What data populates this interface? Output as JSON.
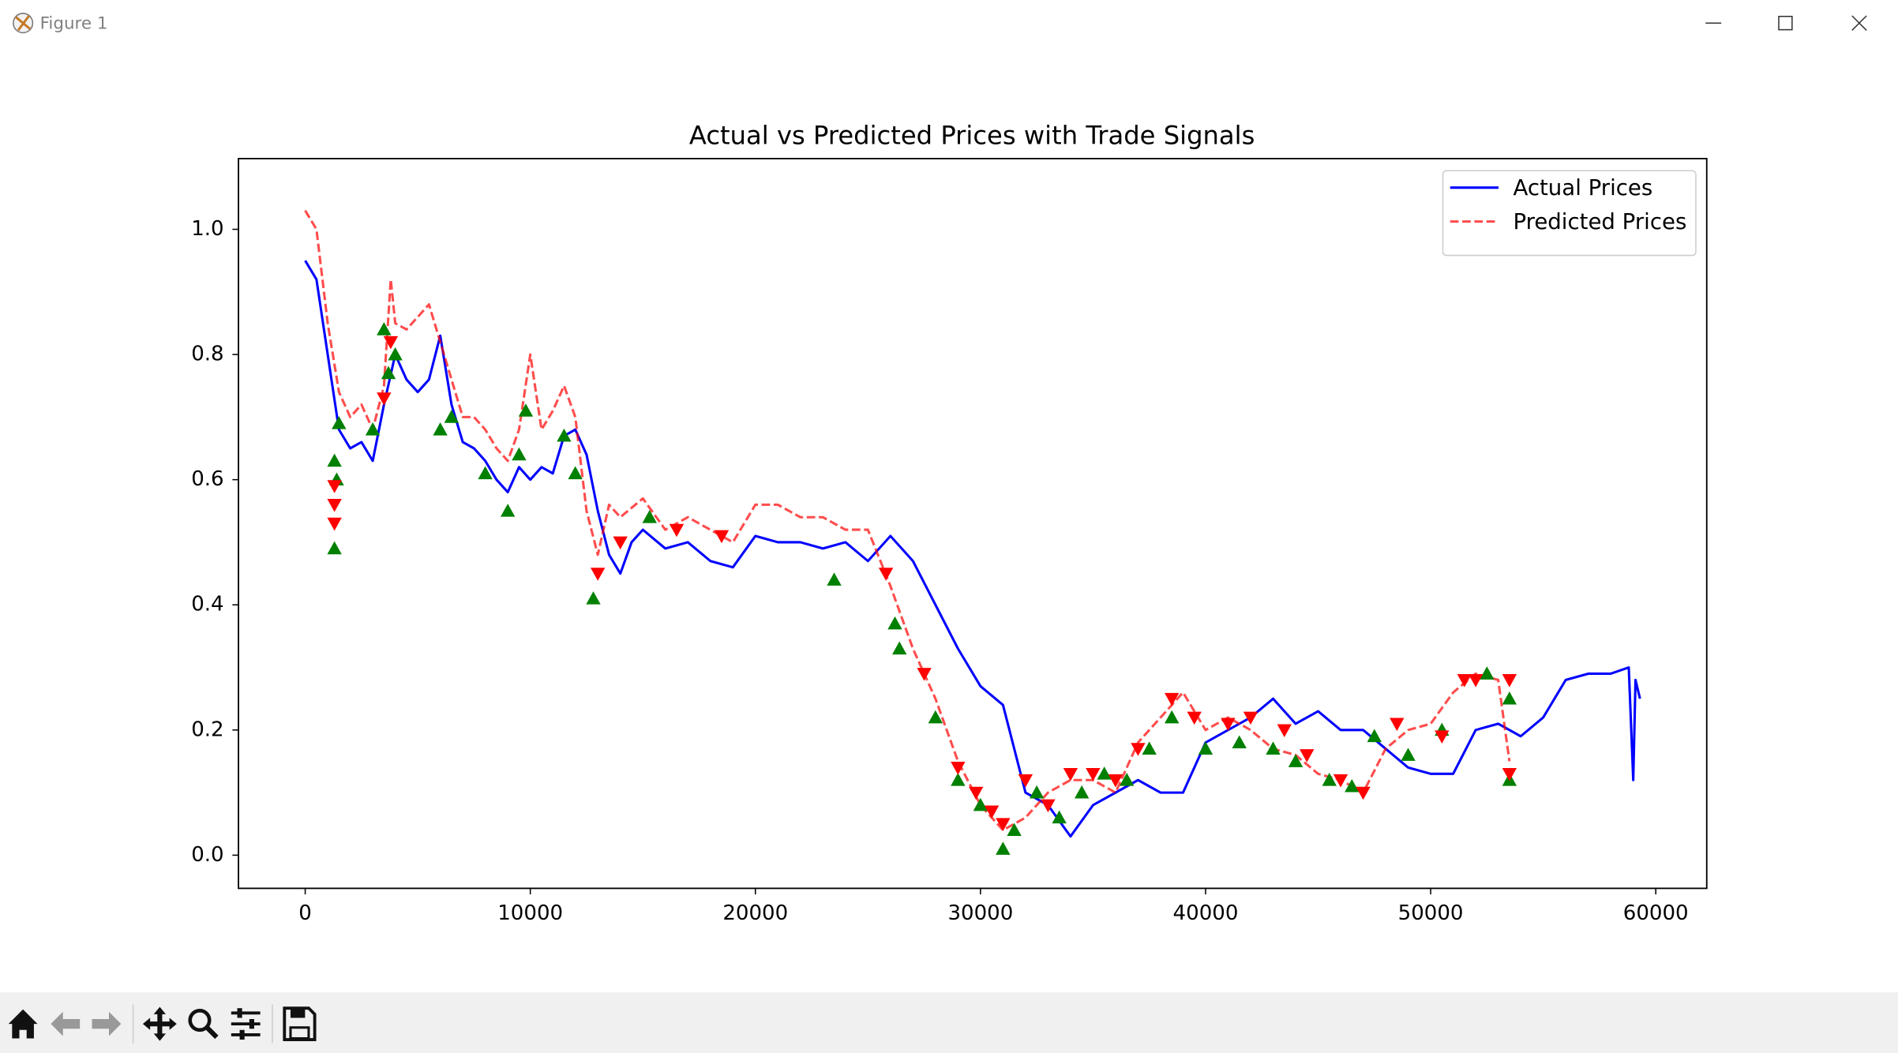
{
  "window": {
    "title": "Figure 1"
  },
  "chart_data": {
    "type": "line",
    "title": "Actual vs Predicted Prices with Trade Signals",
    "xlim": [
      -2965,
      62265
    ],
    "ylim": [
      -0.053,
      1.113
    ],
    "xticks": [
      0,
      10000,
      20000,
      30000,
      40000,
      50000,
      60000
    ],
    "yticks": [
      {
        "value": 0,
        "label": "0.0"
      },
      {
        "value": 0.2,
        "label": "0.2"
      },
      {
        "value": 0.4,
        "label": "0.4"
      },
      {
        "value": 0.6,
        "label": "0.6"
      },
      {
        "value": 0.8,
        "label": "0.8"
      },
      {
        "value": 1,
        "label": "1.0"
      }
    ],
    "legend": "upper right",
    "series": [
      {
        "name": "Actual Prices",
        "color": "#0000ff",
        "linestyle": "solid",
        "x": [
          0,
          500,
          1000,
          1500,
          2000,
          2500,
          3000,
          3500,
          4000,
          4500,
          5000,
          5500,
          6000,
          6500,
          7000,
          7500,
          8000,
          8500,
          9000,
          9500,
          10000,
          10500,
          11000,
          11500,
          12000,
          12500,
          13000,
          13500,
          14000,
          14500,
          15000,
          16000,
          17000,
          18000,
          19000,
          20000,
          21000,
          22000,
          23000,
          24000,
          25000,
          26000,
          27000,
          28000,
          29000,
          30000,
          31000,
          32000,
          33000,
          34000,
          35000,
          36000,
          37000,
          38000,
          39000,
          40000,
          41000,
          42000,
          43000,
          44000,
          45000,
          46000,
          47000,
          48000,
          49000,
          50000,
          51000,
          52000,
          53000,
          54000,
          55000,
          56000,
          57000,
          58000,
          58800,
          59000,
          59100,
          59300
        ],
        "values": [
          0.95,
          0.92,
          0.8,
          0.68,
          0.65,
          0.66,
          0.63,
          0.72,
          0.8,
          0.76,
          0.74,
          0.76,
          0.83,
          0.72,
          0.66,
          0.65,
          0.63,
          0.6,
          0.58,
          0.62,
          0.6,
          0.62,
          0.61,
          0.67,
          0.68,
          0.64,
          0.55,
          0.48,
          0.45,
          0.5,
          0.52,
          0.49,
          0.5,
          0.47,
          0.46,
          0.51,
          0.5,
          0.5,
          0.49,
          0.5,
          0.47,
          0.51,
          0.47,
          0.4,
          0.33,
          0.27,
          0.24,
          0.1,
          0.08,
          0.03,
          0.08,
          0.1,
          0.12,
          0.1,
          0.1,
          0.18,
          0.2,
          0.22,
          0.25,
          0.21,
          0.23,
          0.2,
          0.2,
          0.17,
          0.14,
          0.13,
          0.13,
          0.2,
          0.21,
          0.19,
          0.22,
          0.28,
          0.29,
          0.29,
          0.3,
          0.12,
          0.28,
          0.25
        ]
      },
      {
        "name": "Predicted Prices",
        "color": "#ff0000",
        "linestyle": "dashed",
        "x": [
          0,
          500,
          1000,
          1500,
          2000,
          2500,
          3000,
          3500,
          3800,
          4000,
          4500,
          5000,
          5500,
          6000,
          6500,
          7000,
          7500,
          8000,
          8500,
          9000,
          9500,
          10000,
          10500,
          11000,
          11500,
          12000,
          12500,
          13000,
          13500,
          14000,
          15000,
          16000,
          17000,
          18000,
          19000,
          20000,
          21000,
          22000,
          23000,
          24000,
          25000,
          26000,
          27000,
          28000,
          29000,
          30000,
          31000,
          32000,
          33000,
          34000,
          35000,
          36000,
          37000,
          38000,
          39000,
          40000,
          41000,
          42000,
          43000,
          44000,
          45000,
          46000,
          47000,
          48000,
          49000,
          50000,
          51000,
          52000,
          53000,
          53500
        ],
        "values": [
          1.03,
          1.0,
          0.85,
          0.74,
          0.7,
          0.72,
          0.68,
          0.75,
          0.92,
          0.85,
          0.84,
          0.86,
          0.88,
          0.82,
          0.76,
          0.7,
          0.7,
          0.68,
          0.65,
          0.63,
          0.68,
          0.8,
          0.68,
          0.71,
          0.75,
          0.7,
          0.55,
          0.48,
          0.56,
          0.54,
          0.57,
          0.52,
          0.54,
          0.52,
          0.5,
          0.56,
          0.56,
          0.54,
          0.54,
          0.52,
          0.52,
          0.43,
          0.33,
          0.25,
          0.15,
          0.08,
          0.04,
          0.06,
          0.1,
          0.12,
          0.12,
          0.1,
          0.18,
          0.22,
          0.26,
          0.2,
          0.22,
          0.2,
          0.17,
          0.16,
          0.13,
          0.12,
          0.1,
          0.17,
          0.2,
          0.21,
          0.26,
          0.29,
          0.28,
          0.15
        ]
      }
    ],
    "signals": [
      {
        "marker": "triangle-up",
        "color": "#008000",
        "x": [
          1300,
          1300,
          1400,
          1500,
          3000,
          3500,
          3700,
          4000,
          6000,
          6500,
          8000,
          9000,
          9500,
          9800,
          11500,
          12000,
          12800,
          15300,
          23500,
          26200,
          26400,
          28000,
          29000,
          30000,
          31000,
          31500,
          32500,
          33500,
          34500,
          35500,
          36500,
          37500,
          38500,
          40000,
          41500,
          43000,
          44000,
          45500,
          46500,
          47500,
          49000,
          50500,
          52500,
          53500,
          53500
        ],
        "values": [
          0.49,
          0.63,
          0.6,
          0.69,
          0.68,
          0.84,
          0.77,
          0.8,
          0.68,
          0.7,
          0.61,
          0.55,
          0.64,
          0.71,
          0.67,
          0.61,
          0.41,
          0.54,
          0.44,
          0.37,
          0.33,
          0.22,
          0.12,
          0.08,
          0.01,
          0.04,
          0.1,
          0.06,
          0.1,
          0.13,
          0.12,
          0.17,
          0.22,
          0.17,
          0.18,
          0.17,
          0.15,
          0.12,
          0.11,
          0.19,
          0.16,
          0.2,
          0.29,
          0.12,
          0.25
        ]
      },
      {
        "marker": "triangle-down",
        "color": "#ff0000",
        "x": [
          1300,
          1300,
          1300,
          3500,
          3800,
          13000,
          14000,
          16500,
          18500,
          25800,
          27500,
          29000,
          29800,
          30500,
          31000,
          32000,
          33000,
          34000,
          35000,
          36000,
          37000,
          38500,
          39500,
          41000,
          42000,
          43500,
          44500,
          46000,
          47000,
          48500,
          50500,
          51500,
          52000,
          53500,
          53500
        ],
        "values": [
          0.53,
          0.56,
          0.59,
          0.73,
          0.82,
          0.45,
          0.5,
          0.52,
          0.51,
          0.45,
          0.29,
          0.14,
          0.1,
          0.07,
          0.05,
          0.12,
          0.08,
          0.13,
          0.13,
          0.12,
          0.17,
          0.25,
          0.22,
          0.21,
          0.22,
          0.2,
          0.16,
          0.12,
          0.1,
          0.21,
          0.19,
          0.28,
          0.28,
          0.13,
          0.28
        ]
      }
    ]
  }
}
